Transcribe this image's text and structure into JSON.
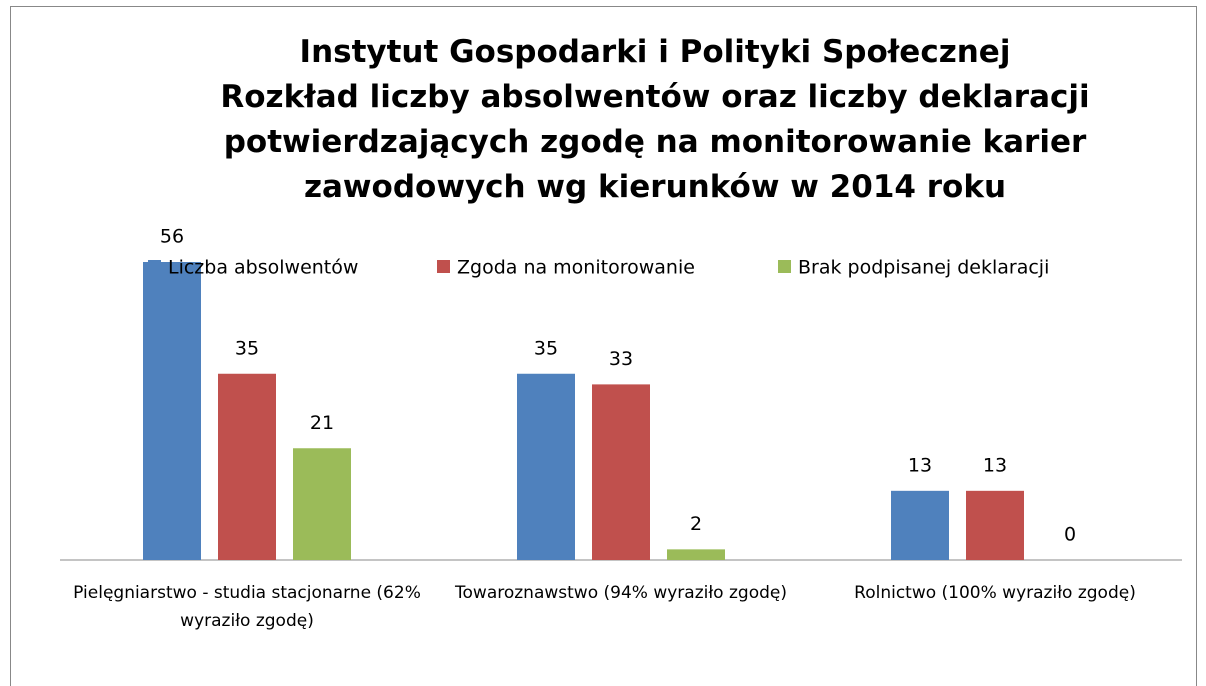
{
  "chart_data": {
    "type": "bar",
    "title": "Instytut Gospodarki i Polityki Społecznej\nRozkład liczby absolwentów oraz liczby deklaracji\npotwierdzających zgodę na monitorowanie karier\nzawodowych wg kierunków w 2014 roku",
    "categories": [
      "Pielęgniarstwo - studia stacjonarne (62% wyraziło zgodę)",
      "Towaroznawstwo (94% wyraziło zgodę)",
      "Rolnictwo (100% wyraziło zgodę)"
    ],
    "series": [
      {
        "name": "Liczba absolwentów",
        "color": "#4f81bd",
        "values": [
          56,
          35,
          13
        ]
      },
      {
        "name": "Zgoda na monitorowanie",
        "color": "#c0504d",
        "values": [
          35,
          33,
          13
        ]
      },
      {
        "name": "Brak podpisanej deklaracji",
        "color": "#9bbb59",
        "values": [
          21,
          2,
          0
        ]
      }
    ],
    "legend": "top"
  }
}
